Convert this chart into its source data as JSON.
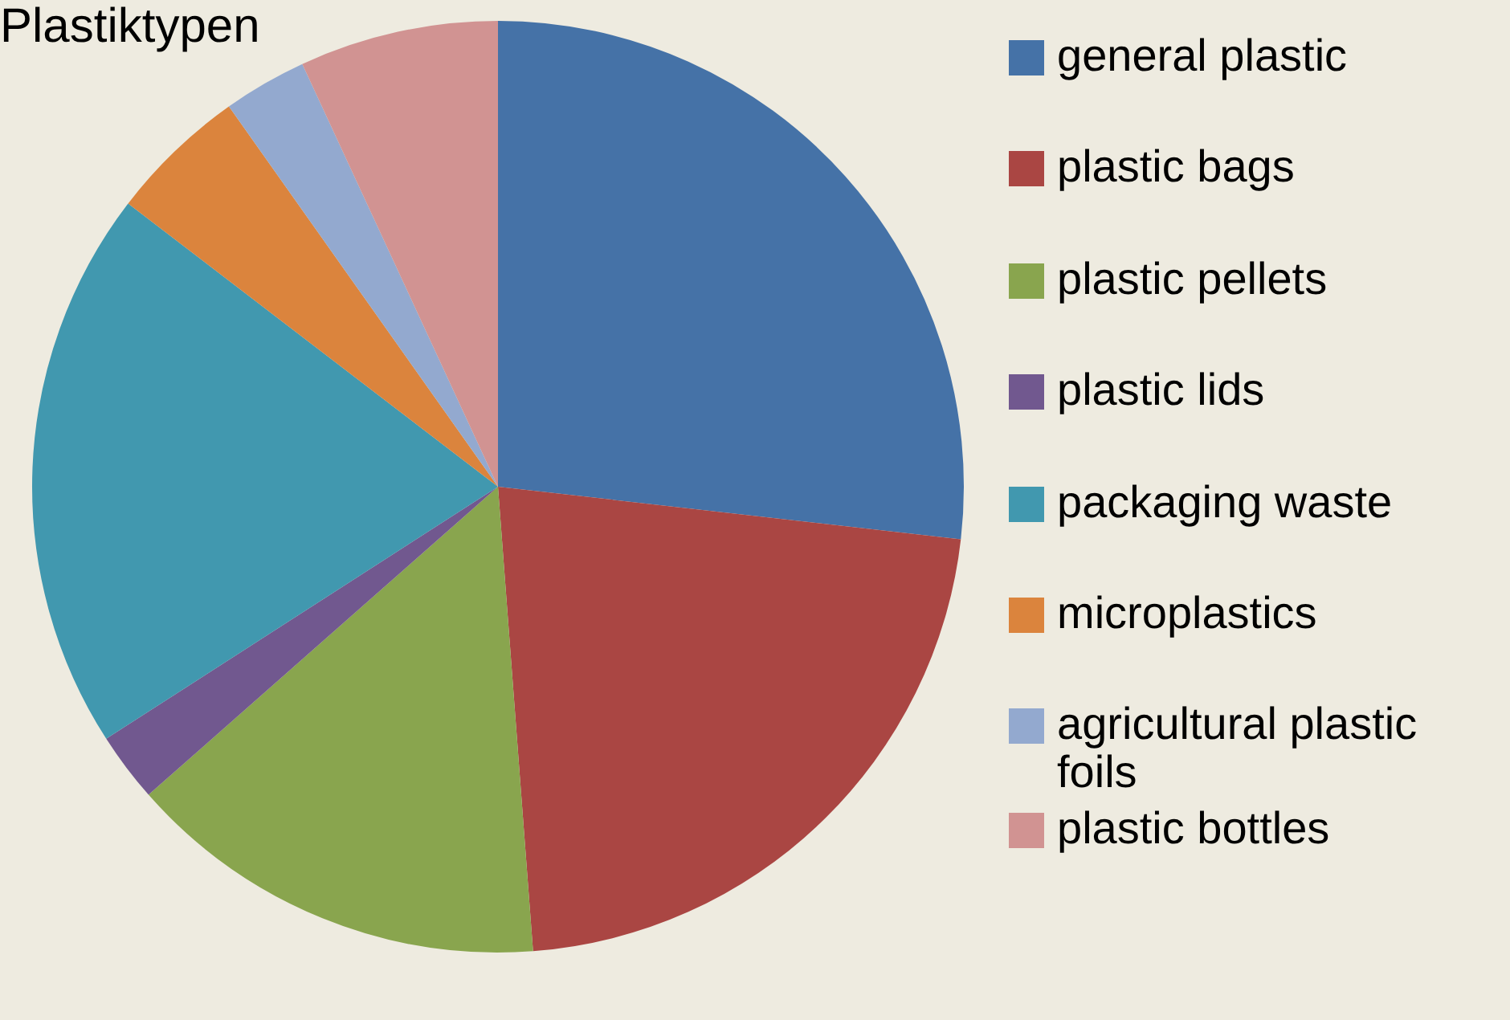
{
  "chart_data": {
    "type": "pie",
    "title": "Plastiktypen",
    "categories": [
      "general plastic",
      "plastic bags",
      "plastic pellets",
      "plastic lids",
      "packaging waste",
      "microplastics",
      "agricultural plastic foils",
      "plastic bottles"
    ],
    "values": [
      26.8,
      22.0,
      14.7,
      2.4,
      19.5,
      4.8,
      2.9,
      6.9
    ],
    "colors": [
      "#4572a7",
      "#aa4643",
      "#89a54e",
      "#71588f",
      "#4198af",
      "#db843d",
      "#93a9cf",
      "#d19392"
    ],
    "legend": "right"
  }
}
